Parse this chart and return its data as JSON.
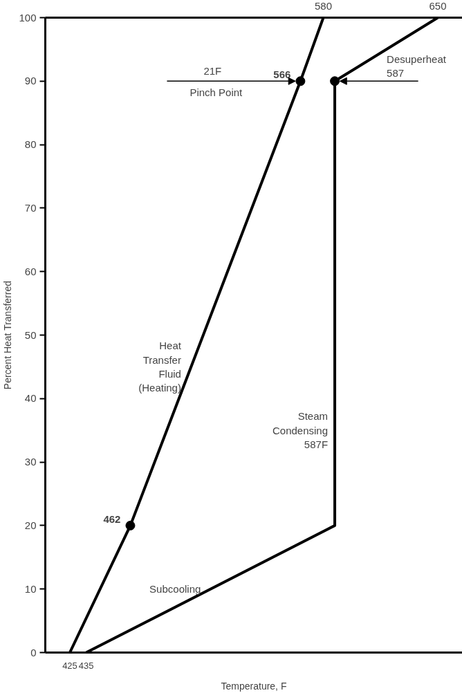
{
  "chart_data": {
    "type": "line",
    "xlabel": "Temperature, F",
    "ylabel": "Percent Heat Transferred",
    "xlim": [
      410,
      665
    ],
    "ylim": [
      0,
      100
    ],
    "yticks": [
      0,
      10,
      20,
      30,
      40,
      50,
      60,
      70,
      80,
      90,
      100
    ],
    "xticks": [
      425,
      435
    ],
    "x2lim": [
      410,
      665
    ],
    "x2ticks": [
      580,
      650
    ],
    "grid": false,
    "line_style": "solid",
    "series": [
      {
        "color": "#000000",
        "x": [
          425,
          462,
          566,
          580
        ],
        "values": [
          0,
          20,
          90,
          100
        ]
      },
      {
        "color": "#000000",
        "x": [
          650,
          587,
          587,
          435
        ],
        "values": [
          100,
          90,
          20,
          0
        ]
      },
      {
        "type": "scatter",
        "marker": "circle",
        "color": "#000000",
        "x": [
          462,
          566,
          587
        ],
        "values": [
          20,
          90,
          90
        ]
      }
    ],
    "annotations": [
      {
        "text": "462",
        "x": 462,
        "y": 20
      },
      {
        "text": "566",
        "x": 566,
        "y": 90
      },
      "21F",
      "Pinch Point",
      {
        "text": "Desuperheat\n587",
        "x": 587,
        "y": 90
      },
      {
        "text": "Heat\nTransfer\nFluid\n(Heating)",
        "x": 499,
        "y": 45
      },
      {
        "text": "Steam\nCondensing\n587F",
        "x": 587,
        "y": 35
      },
      {
        "text": "Subcooling",
        "x": 511,
        "y": 10
      }
    ]
  }
}
